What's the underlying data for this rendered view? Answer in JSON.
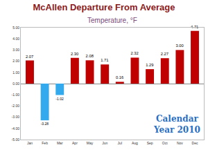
{
  "chart_data": {
    "type": "bar",
    "title": "McAllen Departure From Average",
    "subtitle": "Temperature, °F",
    "categories": [
      "Jan",
      "Feb",
      "Mar",
      "Apr",
      "May",
      "Jun",
      "Jul",
      "Aug",
      "Sep",
      "Oct",
      "Nov",
      "Dec"
    ],
    "values": [
      2.07,
      -3.28,
      -1.02,
      2.3,
      2.08,
      1.71,
      0.16,
      2.32,
      1.29,
      2.27,
      3.0,
      4.71
    ],
    "value_labels": [
      "2.07",
      "-3.28",
      "-1.02",
      "2.30",
      "2.08",
      "1.71",
      "0.16",
      "2.32",
      "1.29",
      "2.27",
      "3.00",
      "4.71"
    ],
    "colors": [
      "#c00000",
      "#33aaee",
      "#33aaee",
      "#c00000",
      "#c00000",
      "#c00000",
      "#c00000",
      "#c00000",
      "#c00000",
      "#c00000",
      "#c00000",
      "#c00000"
    ],
    "ylim": [
      -5,
      5
    ],
    "yticks": [
      {
        "value": -5,
        "label": "-5.00"
      },
      {
        "value": -4,
        "label": "-4.00"
      },
      {
        "value": -3,
        "label": "-3.00"
      },
      {
        "value": -2,
        "label": "-2.00"
      },
      {
        "value": -1,
        "label": "-1.00"
      },
      {
        "value": 0,
        "label": "0.00"
      },
      {
        "value": 1,
        "label": "1.00"
      },
      {
        "value": 2,
        "label": "2.00"
      },
      {
        "value": 3,
        "label": "3.00"
      },
      {
        "value": 4,
        "label": "4.00"
      },
      {
        "value": 5,
        "label": "5.00"
      }
    ],
    "annotations": [
      [
        "Calendar",
        "Year 2010"
      ]
    ],
    "data_labels": true,
    "grid": false
  }
}
